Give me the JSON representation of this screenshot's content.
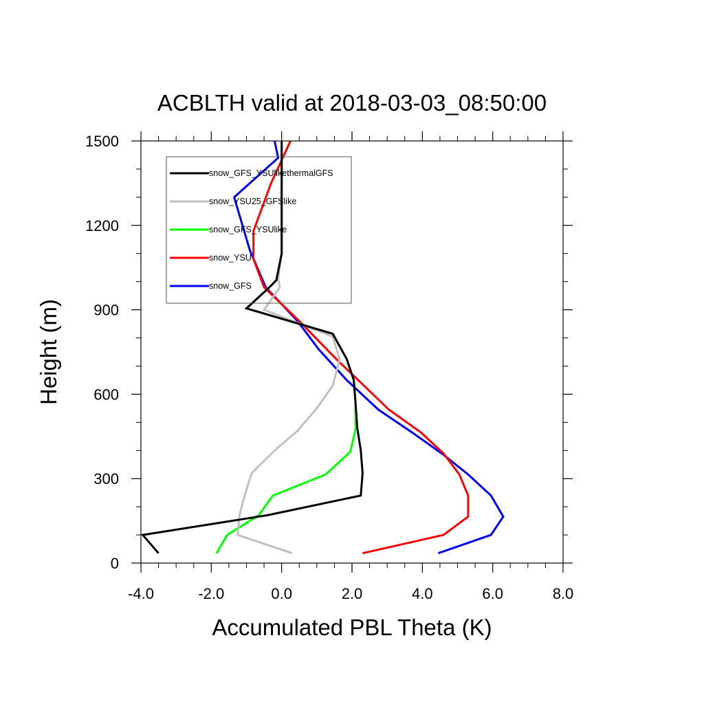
{
  "chart_data": {
    "type": "line",
    "title": "ACBLTH valid at 2018-03-03_08:50:00",
    "xlabel": "Accumulated PBL Theta (K)",
    "ylabel": "Height (m)",
    "xlim": [
      -4.0,
      8.0
    ],
    "ylim": [
      0,
      1500
    ],
    "xticks": [
      "-4.0",
      "-2.0",
      "0.0",
      "2.0",
      "4.0",
      "6.0",
      "8.0"
    ],
    "yticks": [
      "0",
      "300",
      "600",
      "900",
      "1200",
      "1500"
    ],
    "legend": {
      "placement": "top-left"
    },
    "series": [
      {
        "name": "snow_GFS_YSUlikethermalGFS",
        "color": "#000000",
        "points": [
          [
            -3.5,
            35
          ],
          [
            -3.95,
            100
          ],
          [
            -0.4,
            170
          ],
          [
            2.25,
            240
          ],
          [
            2.3,
            320
          ],
          [
            2.25,
            400
          ],
          [
            2.15,
            480
          ],
          [
            2.1,
            570
          ],
          [
            2.05,
            650
          ],
          [
            1.85,
            725
          ],
          [
            1.45,
            815
          ],
          [
            -1.0,
            905
          ],
          [
            -0.35,
            980
          ],
          [
            -0.15,
            1005
          ],
          [
            0.0,
            1100
          ],
          [
            0.0,
            1500
          ]
        ]
      },
      {
        "name": "snow_YSU25_GFSlike",
        "color": "#c0c0c0",
        "points": [
          [
            0.3,
            35
          ],
          [
            -1.25,
            100
          ],
          [
            -1.2,
            170
          ],
          [
            -1.05,
            240
          ],
          [
            -0.85,
            320
          ],
          [
            -0.2,
            400
          ],
          [
            0.45,
            470
          ],
          [
            1.0,
            550
          ],
          [
            1.45,
            630
          ],
          [
            1.65,
            725
          ],
          [
            1.45,
            805
          ],
          [
            -0.5,
            900
          ],
          [
            -0.05,
            980
          ],
          [
            -0.1,
            1010
          ],
          [
            0.0,
            1100
          ],
          [
            0.0,
            1500
          ]
        ]
      },
      {
        "name": "snow_GFS_YSUlike",
        "color": "#00ff00",
        "points": [
          [
            -1.85,
            35
          ],
          [
            -1.55,
            100
          ],
          [
            -0.65,
            170
          ],
          [
            -0.25,
            240
          ],
          [
            1.25,
            315
          ],
          [
            1.95,
            395
          ],
          [
            2.1,
            475
          ],
          [
            2.1,
            570
          ],
          [
            2.05,
            650
          ],
          [
            1.85,
            725
          ],
          [
            1.45,
            815
          ],
          [
            -1.0,
            905
          ],
          [
            -0.35,
            980
          ],
          [
            -0.15,
            1005
          ],
          [
            0.0,
            1100
          ],
          [
            0.0,
            1500
          ]
        ]
      },
      {
        "name": "snow_YSU",
        "color": "#ff0000",
        "points": [
          [
            2.3,
            35
          ],
          [
            4.6,
            100
          ],
          [
            5.3,
            165
          ],
          [
            5.3,
            240
          ],
          [
            5.05,
            315
          ],
          [
            4.6,
            390
          ],
          [
            3.95,
            465
          ],
          [
            3.05,
            545
          ],
          [
            2.3,
            635
          ],
          [
            1.55,
            725
          ],
          [
            0.5,
            860
          ],
          [
            -0.5,
            980
          ],
          [
            -0.8,
            1080
          ],
          [
            -0.8,
            1180
          ],
          [
            -0.3,
            1350
          ],
          [
            0.25,
            1500
          ]
        ]
      },
      {
        "name": "snow_GFS",
        "color": "#0000ff",
        "points": [
          [
            4.45,
            35
          ],
          [
            5.95,
            100
          ],
          [
            6.3,
            165
          ],
          [
            5.95,
            240
          ],
          [
            5.3,
            315
          ],
          [
            4.6,
            385
          ],
          [
            3.7,
            465
          ],
          [
            2.75,
            545
          ],
          [
            1.85,
            650
          ],
          [
            1.05,
            760
          ],
          [
            0.45,
            860
          ],
          [
            -0.45,
            980
          ],
          [
            -0.9,
            1110
          ],
          [
            -1.35,
            1300
          ],
          [
            -0.1,
            1440
          ],
          [
            -0.2,
            1500
          ]
        ]
      }
    ]
  }
}
